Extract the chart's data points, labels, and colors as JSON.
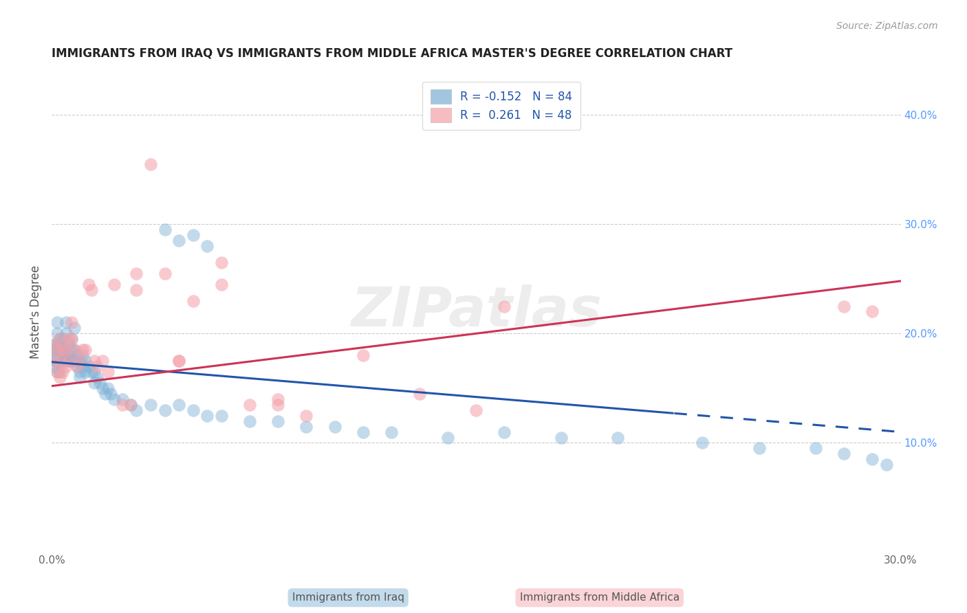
{
  "title": "IMMIGRANTS FROM IRAQ VS IMMIGRANTS FROM MIDDLE AFRICA MASTER'S DEGREE CORRELATION CHART",
  "source": "Source: ZipAtlas.com",
  "ylabel": "Master's Degree",
  "xlim": [
    0.0,
    0.3
  ],
  "ylim": [
    0.0,
    0.44
  ],
  "yticks_right": [
    0.1,
    0.2,
    0.3,
    0.4
  ],
  "ytick_right_labels": [
    "10.0%",
    "20.0%",
    "30.0%",
    "40.0%"
  ],
  "R_iraq": -0.152,
  "N_iraq": 84,
  "R_africa": 0.261,
  "N_africa": 48,
  "legend_label_iraq": "Immigrants from Iraq",
  "legend_label_africa": "Immigrants from Middle Africa",
  "color_iraq": "#7BAFD4",
  "color_africa": "#F4A0A8",
  "color_iraq_line": "#2255AA",
  "color_africa_line": "#CC3355",
  "watermark": "ZIPatlas",
  "iraq_x": [
    0.001,
    0.001,
    0.001,
    0.001,
    0.001,
    0.002,
    0.002,
    0.002,
    0.002,
    0.002,
    0.002,
    0.003,
    0.003,
    0.003,
    0.003,
    0.003,
    0.004,
    0.004,
    0.004,
    0.004,
    0.004,
    0.005,
    0.005,
    0.005,
    0.005,
    0.005,
    0.006,
    0.006,
    0.006,
    0.007,
    0.007,
    0.007,
    0.008,
    0.008,
    0.008,
    0.009,
    0.009,
    0.01,
    0.01,
    0.01,
    0.011,
    0.011,
    0.012,
    0.012,
    0.013,
    0.014,
    0.015,
    0.015,
    0.016,
    0.017,
    0.018,
    0.019,
    0.02,
    0.021,
    0.022,
    0.025,
    0.028,
    0.03,
    0.035,
    0.04,
    0.045,
    0.05,
    0.055,
    0.06,
    0.07,
    0.08,
    0.09,
    0.1,
    0.11,
    0.12,
    0.14,
    0.16,
    0.18,
    0.2,
    0.23,
    0.25,
    0.27,
    0.28,
    0.29,
    0.295,
    0.05,
    0.055,
    0.04,
    0.045
  ],
  "iraq_y": [
    0.19,
    0.185,
    0.18,
    0.175,
    0.17,
    0.21,
    0.2,
    0.19,
    0.185,
    0.175,
    0.165,
    0.195,
    0.19,
    0.185,
    0.175,
    0.165,
    0.185,
    0.18,
    0.175,
    0.195,
    0.185,
    0.185,
    0.18,
    0.175,
    0.21,
    0.2,
    0.19,
    0.18,
    0.175,
    0.195,
    0.185,
    0.175,
    0.205,
    0.185,
    0.175,
    0.18,
    0.17,
    0.175,
    0.165,
    0.16,
    0.18,
    0.17,
    0.175,
    0.165,
    0.17,
    0.165,
    0.165,
    0.155,
    0.16,
    0.155,
    0.15,
    0.145,
    0.15,
    0.145,
    0.14,
    0.14,
    0.135,
    0.13,
    0.135,
    0.13,
    0.135,
    0.13,
    0.125,
    0.125,
    0.12,
    0.12,
    0.115,
    0.115,
    0.11,
    0.11,
    0.105,
    0.11,
    0.105,
    0.105,
    0.1,
    0.095,
    0.095,
    0.09,
    0.085,
    0.08,
    0.29,
    0.28,
    0.295,
    0.285
  ],
  "africa_x": [
    0.001,
    0.001,
    0.002,
    0.002,
    0.003,
    0.003,
    0.003,
    0.004,
    0.004,
    0.005,
    0.005,
    0.006,
    0.006,
    0.007,
    0.007,
    0.008,
    0.009,
    0.01,
    0.011,
    0.012,
    0.013,
    0.014,
    0.015,
    0.016,
    0.018,
    0.02,
    0.022,
    0.025,
    0.028,
    0.03,
    0.035,
    0.04,
    0.045,
    0.05,
    0.06,
    0.07,
    0.08,
    0.09,
    0.11,
    0.13,
    0.15,
    0.16,
    0.28,
    0.29,
    0.03,
    0.045,
    0.06,
    0.08
  ],
  "africa_y": [
    0.19,
    0.175,
    0.185,
    0.165,
    0.195,
    0.175,
    0.16,
    0.185,
    0.165,
    0.185,
    0.17,
    0.195,
    0.175,
    0.21,
    0.195,
    0.185,
    0.17,
    0.175,
    0.185,
    0.185,
    0.245,
    0.24,
    0.175,
    0.17,
    0.175,
    0.165,
    0.245,
    0.135,
    0.135,
    0.255,
    0.355,
    0.255,
    0.175,
    0.23,
    0.265,
    0.135,
    0.135,
    0.125,
    0.18,
    0.145,
    0.13,
    0.225,
    0.225,
    0.22,
    0.24,
    0.175,
    0.245,
    0.14
  ],
  "iraq_line_x": [
    0.0,
    0.3
  ],
  "iraq_line_y": [
    0.174,
    0.11
  ],
  "africa_line_x": [
    0.0,
    0.3
  ],
  "africa_line_y": [
    0.152,
    0.248
  ],
  "iraq_dash_split": 0.22
}
